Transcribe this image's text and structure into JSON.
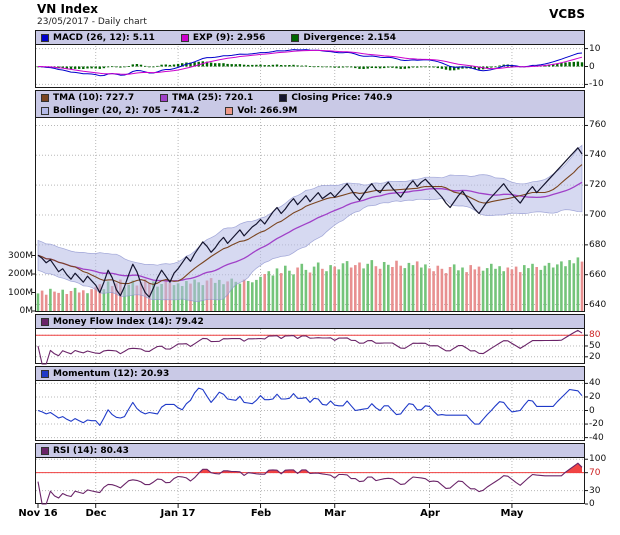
{
  "header": {
    "title": "VN Index",
    "subtitle": "23/05/2017 - Daily chart",
    "brand": "VCBS"
  },
  "colors": {
    "legend_bg": "#c9c9e6",
    "panel_border": "#1a1a1a",
    "grid": "#b8b8b8",
    "tick": "#1a1a1a",
    "tick_red": "#cc2020",
    "macd": "#0000cc",
    "exp": "#cc00cc",
    "divergence": "#006600",
    "tma10": "#7a4520",
    "tma25": "#a040c8",
    "close": "#14142e",
    "boll_fill": "#b4b9e6",
    "boll_edge": "#8f95d0",
    "vol_up": "#74c47a",
    "vol_down": "#e89090",
    "mfi": "#6a2468",
    "momentum": "#1f3ac8",
    "rsi": "#6a2468",
    "rsi_fill": "#f03030",
    "threshold": "#f04040"
  },
  "legends": {
    "macd": [
      {
        "label": "MACD (26, 12): 5.11",
        "color": "#0000cc"
      },
      {
        "label": "EXP (9): 2.956",
        "color": "#cc00cc"
      },
      {
        "label": "Divergence: 2.154",
        "color": "#006600"
      }
    ],
    "price_row1": [
      {
        "label": "TMA (10): 727.7",
        "color": "#7a4520"
      },
      {
        "label": "TMA (25): 720.1",
        "color": "#a040c8"
      },
      {
        "label": "Closing Price: 740.9",
        "color": "#14142e"
      }
    ],
    "price_row2": [
      {
        "label": "Bollinger (20, 2): 705 - 741.2",
        "color": "#b4b9e6"
      },
      {
        "label": "Vol: 266.9M",
        "color": "#ee9988"
      }
    ],
    "mfi": [
      {
        "label": "Money Flow Index (14): 79.42",
        "color": "#6a2468"
      }
    ],
    "momentum": [
      {
        "label": "Momentum (12): 20.93",
        "color": "#1f3ac8"
      }
    ],
    "rsi": [
      {
        "label": "RSI (14): 80.43",
        "color": "#6a2468"
      }
    ]
  },
  "axes": {
    "macd": [
      {
        "label": "10",
        "v": 10
      },
      {
        "label": "0",
        "v": 0
      },
      {
        "label": "-10",
        "v": -10
      }
    ],
    "price": [
      {
        "label": "760",
        "v": 760
      },
      {
        "label": "740",
        "v": 740
      },
      {
        "label": "720",
        "v": 720
      },
      {
        "label": "700",
        "v": 700
      },
      {
        "label": "680",
        "v": 680
      },
      {
        "label": "660",
        "v": 660
      },
      {
        "label": "640",
        "v": 640
      }
    ],
    "volume": [
      {
        "label": "300M",
        "v": 300
      },
      {
        "label": "200M",
        "v": 200
      },
      {
        "label": "100M",
        "v": 100
      },
      {
        "label": "0M",
        "v": 0
      }
    ],
    "mfi": [
      {
        "label": "80",
        "v": 80,
        "red": true
      },
      {
        "label": "50",
        "v": 50
      },
      {
        "label": "20",
        "v": 20
      }
    ],
    "momentum": [
      {
        "label": "40",
        "v": 40
      },
      {
        "label": "20",
        "v": 20
      },
      {
        "label": "0",
        "v": 0
      },
      {
        "label": "-20",
        "v": -20
      },
      {
        "label": "-40",
        "v": -40
      }
    ],
    "rsi": [
      {
        "label": "100",
        "v": 100
      },
      {
        "label": "70",
        "v": 70,
        "red": true
      },
      {
        "label": "30",
        "v": 30
      },
      {
        "label": "0",
        "v": 0
      }
    ]
  },
  "thresholds": {
    "mfi": 80,
    "rsi": 70
  },
  "chart_data": {
    "type": "multi-panel-financial",
    "title": "VN Index",
    "date": "23/05/2017",
    "interval": "Daily",
    "x_labels": [
      "Nov 16",
      "Dec",
      "Jan 17",
      "Feb",
      "Mar",
      "Apr",
      "May"
    ],
    "month_starts": [
      0,
      14,
      34,
      54,
      72,
      95,
      115
    ],
    "panel_ranges": {
      "macd": [
        -12,
        12
      ],
      "price": [
        635,
        765
      ],
      "mfi": [
        0,
        100
      ],
      "momentum": [
        -45,
        45
      ],
      "rsi": [
        0,
        105
      ],
      "volume_max_m": 300
    },
    "indicators": {
      "macd": {
        "params": "26, 12",
        "value": 5.11
      },
      "exp": {
        "params": "9",
        "value": 2.956
      },
      "divergence": {
        "value": 2.154
      },
      "tma10": {
        "params": "10",
        "value": 727.7
      },
      "tma25": {
        "params": "25",
        "value": 720.1
      },
      "closing_price": {
        "value": 740.9
      },
      "bollinger": {
        "params": "20, 2",
        "range": "705 - 741.2"
      },
      "volume": {
        "value": "266.9M"
      },
      "money_flow_index": {
        "params": "14",
        "value": 79.42
      },
      "momentum": {
        "params": "12",
        "value": 20.93
      },
      "rsi": {
        "params": "14",
        "value": 80.43
      }
    },
    "close": [
      673,
      671,
      668,
      670,
      666,
      662,
      664,
      660,
      657,
      661,
      658,
      655,
      659,
      656,
      653,
      648,
      655,
      663,
      658,
      650,
      646,
      652,
      660,
      667,
      662,
      654,
      648,
      645,
      651,
      658,
      663,
      659,
      655,
      661,
      664,
      668,
      672,
      669,
      674,
      678,
      682,
      679,
      675,
      678,
      682,
      685,
      681,
      684,
      687,
      690,
      686,
      689,
      692,
      694,
      697,
      694,
      698,
      702,
      705,
      701,
      704,
      708,
      711,
      707,
      710,
      713,
      709,
      712,
      715,
      711,
      713,
      715,
      712,
      715,
      718,
      721,
      717,
      713,
      710,
      714,
      718,
      721,
      717,
      715,
      719,
      722,
      718,
      715,
      712,
      716,
      720,
      723,
      719,
      722,
      724,
      721,
      718,
      715,
      712,
      708,
      705,
      709,
      713,
      716,
      712,
      708,
      704,
      701,
      705,
      709,
      712,
      715,
      718,
      721,
      717,
      714,
      711,
      708,
      712,
      716,
      719,
      715,
      718,
      721,
      724,
      727,
      730,
      733,
      736,
      739,
      742,
      745,
      740.9
    ],
    "volume_m": [
      95,
      110,
      88,
      120,
      105,
      98,
      115,
      92,
      108,
      125,
      100,
      112,
      96,
      118,
      130,
      145,
      118,
      160,
      135,
      150,
      170,
      128,
      142,
      165,
      138,
      155,
      172,
      148,
      160,
      132,
      146,
      168,
      152,
      140,
      150,
      135,
      162,
      148,
      170,
      155,
      140,
      165,
      178,
      152,
      168,
      145,
      160,
      175,
      158,
      148,
      170,
      162,
      155,
      168,
      185,
      200,
      215,
      192,
      230,
      205,
      245,
      218,
      198,
      235,
      255,
      222,
      208,
      240,
      262,
      228,
      215,
      248,
      240,
      225,
      258,
      270,
      235,
      248,
      262,
      230,
      255,
      275,
      242,
      228,
      265,
      250,
      238,
      272,
      245,
      232,
      260,
      248,
      268,
      235,
      252,
      230,
      215,
      245,
      228,
      205,
      238,
      252,
      220,
      235,
      210,
      248,
      225,
      240,
      218,
      232,
      255,
      228,
      242,
      215,
      235,
      225,
      240,
      210,
      248,
      232,
      255,
      238,
      222,
      245,
      260,
      235,
      252,
      268,
      242,
      275,
      258,
      290,
      266.9
    ]
  }
}
